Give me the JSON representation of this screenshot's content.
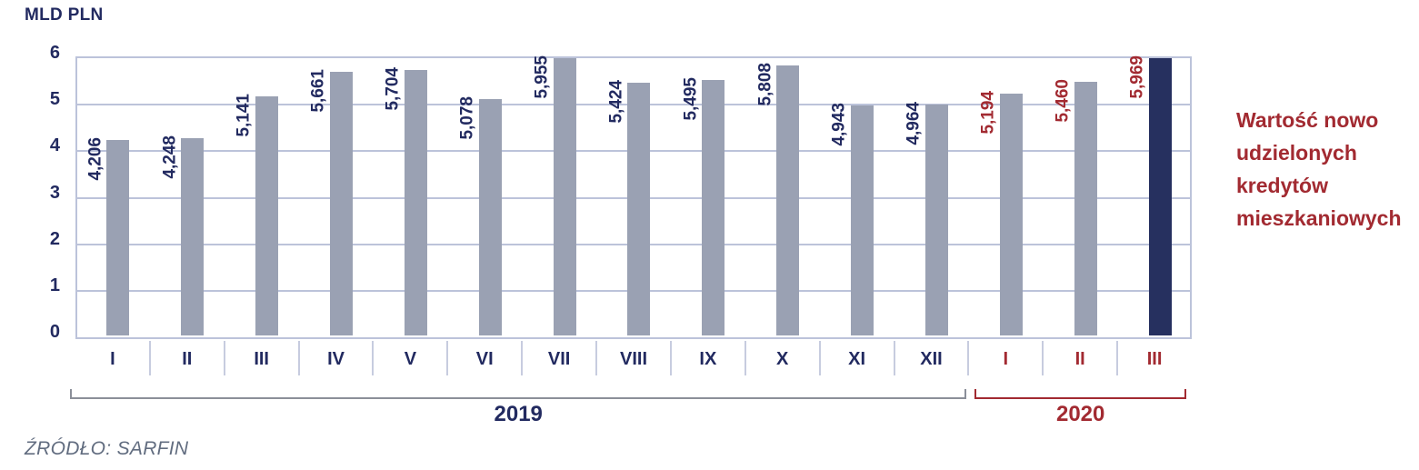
{
  "chart_data": {
    "type": "bar",
    "unit_label": "MLD PLN",
    "ylabel": "MLD PLN",
    "xlabel": "",
    "ylim": [
      0,
      6
    ],
    "yticks": [
      0,
      1,
      2,
      3,
      4,
      5,
      6
    ],
    "grid": true,
    "legend_position": "none",
    "categories": [
      "I",
      "II",
      "III",
      "IV",
      "V",
      "VI",
      "VII",
      "VIII",
      "IX",
      "X",
      "XI",
      "XII",
      "I",
      "II",
      "III"
    ],
    "values": [
      4.206,
      4.248,
      5.141,
      5.661,
      5.704,
      5.078,
      5.955,
      5.424,
      5.495,
      5.808,
      4.943,
      4.964,
      5.194,
      5.46,
      5.969
    ],
    "value_labels": [
      "4,206",
      "4,248",
      "5,141",
      "5,661",
      "5,704",
      "5,078",
      "5,955",
      "5,424",
      "5,495",
      "5,808",
      "4,943",
      "4,964",
      "5,194",
      "5,460",
      "5,969"
    ],
    "highlight_index": 14,
    "groups": [
      {
        "label": "2019",
        "start": 0,
        "end": 11,
        "bracket_color": "#8b8f99",
        "text_color": "#222a60"
      },
      {
        "label": "2020",
        "start": 12,
        "end": 14,
        "bracket_color": "#a22a31",
        "text_color": "#a22a31"
      }
    ],
    "annotation": "Wartość nowo udzielonych kredytów mieszkaniowych",
    "annotation_lines": "Wartość nowo\nudzielonych\nkredytów\nmieszkaniowych",
    "source": "ŹRÓDŁO: SARFIN",
    "colors": {
      "bar": "#9aa1b3",
      "bar_highlight": "#26305f",
      "axis_text": "#222a60",
      "gridline": "#bcc3da",
      "separator": "#c7ccdf",
      "annotation_text": "#a22a31",
      "source_text": "#626d80"
    }
  }
}
